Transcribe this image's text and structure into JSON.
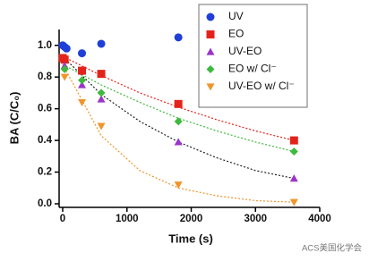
{
  "chart_data": {
    "type": "scatter",
    "x_label": "Time (s)",
    "y_label": "BA (C/C₀)",
    "xlim": [
      0,
      4000
    ],
    "xticks": [
      0,
      1000,
      2000,
      3000,
      4000
    ],
    "ylim": [
      0,
      1.1
    ],
    "yticks": [
      {
        "value": 0,
        "label": "0.0"
      },
      {
        "value": 0.2,
        "label": "0.2"
      },
      {
        "value": 0.4,
        "label": "0.4"
      },
      {
        "value": 0.6,
        "label": "0.6"
      },
      {
        "value": 0.8,
        "label": "0.8"
      },
      {
        "value": 1,
        "label": "1.0"
      }
    ],
    "legend": "upper right",
    "series": [
      {
        "name": "UV",
        "color": "#1f3fd8",
        "marker": "circle",
        "x": [
          0,
          30,
          60,
          300,
          600,
          1800
        ],
        "values": [
          1.0,
          0.99,
          0.98,
          0.95,
          1.01,
          1.05
        ]
      },
      {
        "name": "EO",
        "color": "#e3231b",
        "marker": "square",
        "x": [
          0,
          30,
          300,
          600,
          1800,
          3600
        ],
        "values": [
          0.92,
          0.91,
          0.84,
          0.82,
          0.63,
          0.4
        ]
      },
      {
        "name": "UV-EO",
        "color": "#9b35c9",
        "marker": "triangle",
        "x": [
          30,
          300,
          600,
          1800,
          3600
        ],
        "values": [
          0.87,
          0.75,
          0.66,
          0.39,
          0.16
        ]
      },
      {
        "name": "EO w/ Cl⁻",
        "color": "#3dba3d",
        "marker": "diamond",
        "x": [
          30,
          300,
          600,
          1800,
          3600
        ],
        "values": [
          0.85,
          0.78,
          0.7,
          0.52,
          0.33
        ]
      },
      {
        "name": "UV-EO w/ Cl⁻",
        "color": "#f0952a",
        "marker": "triangle-down",
        "x": [
          30,
          300,
          600,
          1800,
          3600
        ],
        "values": [
          0.8,
          0.64,
          0.49,
          0.12,
          0.01
        ]
      }
    ],
    "fits": [
      {
        "color": "#e3231b",
        "x": [
          0,
          600,
          1200,
          1800,
          2400,
          3000,
          3600
        ],
        "values": [
          0.93,
          0.81,
          0.7,
          0.61,
          0.53,
          0.46,
          0.4
        ]
      },
      {
        "color": "#222222",
        "x": [
          0,
          600,
          1200,
          1800,
          2400,
          3000,
          3600
        ],
        "values": [
          0.93,
          0.69,
          0.52,
          0.39,
          0.29,
          0.21,
          0.16
        ]
      },
      {
        "color": "#3dba3d",
        "x": [
          0,
          600,
          1200,
          1800,
          2400,
          3000,
          3600
        ],
        "values": [
          0.88,
          0.75,
          0.64,
          0.54,
          0.46,
          0.39,
          0.33
        ]
      },
      {
        "color": "#f0952a",
        "x": [
          0,
          600,
          1200,
          1800,
          2400,
          3000,
          3600
        ],
        "values": [
          0.88,
          0.43,
          0.21,
          0.1,
          0.05,
          0.02,
          0.01
        ]
      }
    ],
    "watermark": "ACS美国化学会"
  }
}
